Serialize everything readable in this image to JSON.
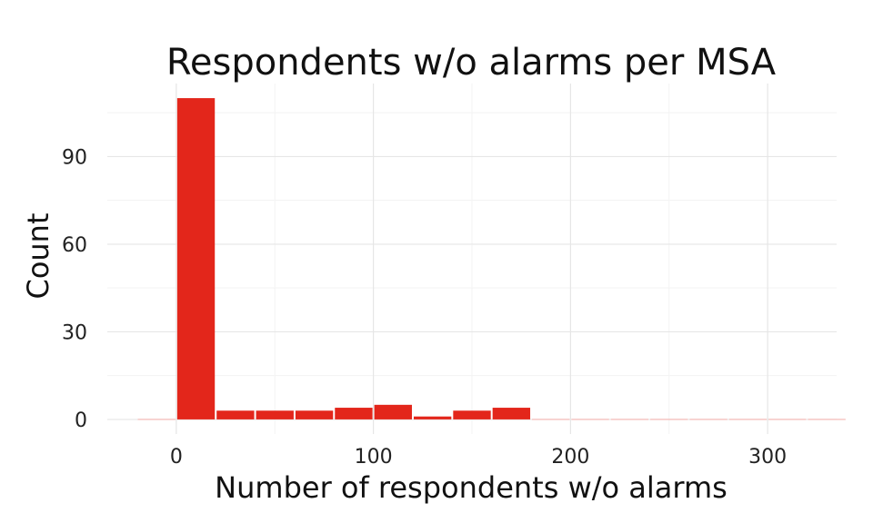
{
  "chart_data": {
    "type": "bar",
    "title": "Respondents w/o alarms per MSA",
    "xlabel": "Number of respondents w/o alarms",
    "ylabel": "Count",
    "bin_width": 20,
    "bins": [
      {
        "x0": -20,
        "x1": 0,
        "count": 0
      },
      {
        "x0": 0,
        "x1": 20,
        "count": 110
      },
      {
        "x0": 20,
        "x1": 40,
        "count": 3
      },
      {
        "x0": 40,
        "x1": 60,
        "count": 3
      },
      {
        "x0": 60,
        "x1": 80,
        "count": 3
      },
      {
        "x0": 80,
        "x1": 100,
        "count": 4
      },
      {
        "x0": 100,
        "x1": 120,
        "count": 5
      },
      {
        "x0": 120,
        "x1": 140,
        "count": 1
      },
      {
        "x0": 140,
        "x1": 160,
        "count": 3
      },
      {
        "x0": 160,
        "x1": 180,
        "count": 4
      },
      {
        "x0": 180,
        "x1": 200,
        "count": 0
      },
      {
        "x0": 200,
        "x1": 220,
        "count": 0
      },
      {
        "x0": 220,
        "x1": 240,
        "count": 0
      },
      {
        "x0": 240,
        "x1": 260,
        "count": 0
      },
      {
        "x0": 260,
        "x1": 280,
        "count": 0
      },
      {
        "x0": 280,
        "x1": 300,
        "count": 0
      },
      {
        "x0": 300,
        "x1": 320,
        "count": 0
      },
      {
        "x0": 320,
        "x1": 340,
        "count": 0
      }
    ],
    "xlim": [
      -35,
      335
    ],
    "ylim": [
      -5,
      115
    ],
    "xticks": [
      0,
      100,
      200,
      300
    ],
    "yticks": [
      0,
      30,
      60,
      90
    ],
    "grid": true,
    "legend": "none",
    "bar_color": "#e3261b",
    "empty_bin_color": "#f4b5b0"
  }
}
